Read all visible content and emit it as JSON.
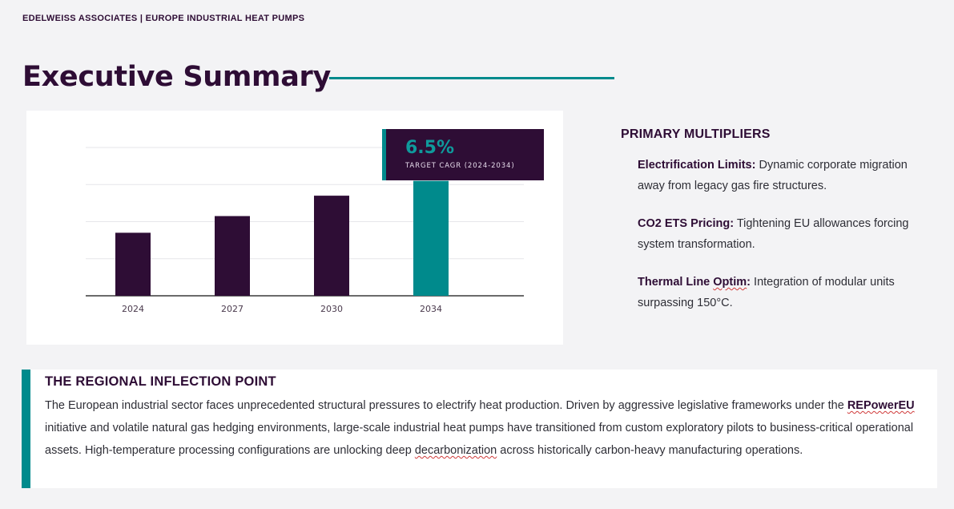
{
  "header": {
    "brand": "EDELWEISS ASSOCIATES | EUROPE INDUSTRIAL HEAT PUMPS",
    "title": "Executive Summary"
  },
  "chart_data": {
    "type": "bar",
    "categories": [
      "2024",
      "2027",
      "2030",
      "2034"
    ],
    "values": [
      1.7,
      2.15,
      2.7,
      3.1
    ],
    "ylim": [
      0,
      4
    ],
    "grid": true,
    "highlight_index": 3,
    "colors": {
      "bar": "#2e0d35",
      "highlight": "#008a8c",
      "grid": "#e6e6ea",
      "axis": "#3a3a3a"
    },
    "callout": {
      "value": "6.5%",
      "label": "TARGET CAGR (2024-2034)"
    }
  },
  "multipliers": {
    "heading": "PRIMARY MULTIPLIERS",
    "items": [
      {
        "label": "Electrification Limits:",
        "text": " Dynamic corporate migration away from legacy gas fire structures."
      },
      {
        "label": "CO2 ETS Pricing:",
        "text": " Tightening EU allowances forcing system transformation."
      },
      {
        "label_a": "Thermal Line ",
        "label_b": "Optim",
        "label_c": ":",
        "text": " Integration of modular units surpassing 150°C."
      }
    ]
  },
  "inflection": {
    "heading": "THE REGIONAL INFLECTION POINT",
    "p1": "The European industrial sector faces unprecedented structural pressures to electrify heat production. Driven by aggressive legislative frameworks under the ",
    "term": "REPowerEU",
    "p2": " initiative and volatile natural gas hedging environments, large-scale industrial heat pumps have transitioned from custom exploratory pilots to business-critical operational assets. High-temperature processing configurations are unlocking deep ",
    "term2": "decarbonization",
    "p3": " across historically carbon-heavy manufacturing operations."
  }
}
